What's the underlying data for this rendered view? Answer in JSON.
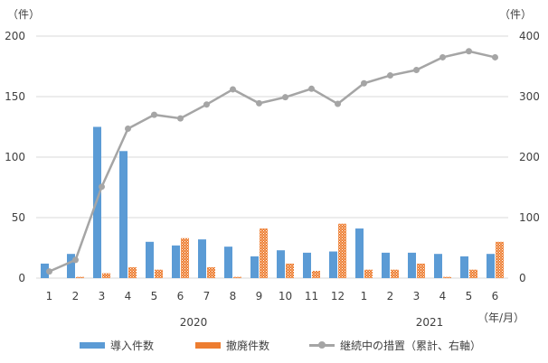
{
  "chart_data": {
    "type": "bar",
    "left_unit": "（件）",
    "right_unit": "（件）",
    "x_unit": "（年/月）",
    "categories": [
      "1",
      "2",
      "3",
      "4",
      "5",
      "6",
      "7",
      "8",
      "9",
      "10",
      "11",
      "12",
      "1",
      "2",
      "3",
      "4",
      "5",
      "6"
    ],
    "year_labels": [
      {
        "label": "2020",
        "from_index": 0,
        "to_index": 11
      },
      {
        "label": "2021",
        "from_index": 12,
        "to_index": 17
      }
    ],
    "y_left": {
      "min": 0,
      "max": 200,
      "ticks": [
        0,
        50,
        100,
        150,
        200
      ]
    },
    "y_right": {
      "min": 0,
      "max": 400,
      "ticks": [
        0,
        100,
        200,
        300,
        400
      ]
    },
    "grid": true,
    "legend_position": "bottom",
    "series": [
      {
        "name": "導入件数",
        "type": "bar",
        "axis": "left",
        "color": "#5b9bd5",
        "values": [
          12,
          20,
          125,
          105,
          30,
          27,
          32,
          26,
          18,
          23,
          21,
          22,
          41,
          21,
          21,
          20,
          18,
          20
        ]
      },
      {
        "name": "撤廃件数",
        "type": "bar",
        "axis": "left",
        "color": "#ed7d31",
        "pattern": "dotted",
        "values": [
          0,
          1,
          4,
          9,
          7,
          33,
          9,
          1,
          41,
          12,
          6,
          45,
          7,
          7,
          12,
          1,
          7,
          30
        ]
      },
      {
        "name": "継続中の措置（累計、右軸）",
        "type": "line",
        "axis": "right",
        "color": "#a5a5a5",
        "values": [
          11,
          30,
          151,
          247,
          270,
          264,
          287,
          312,
          289,
          299,
          313,
          288,
          322,
          335,
          344,
          365,
          375,
          365
        ]
      }
    ]
  }
}
